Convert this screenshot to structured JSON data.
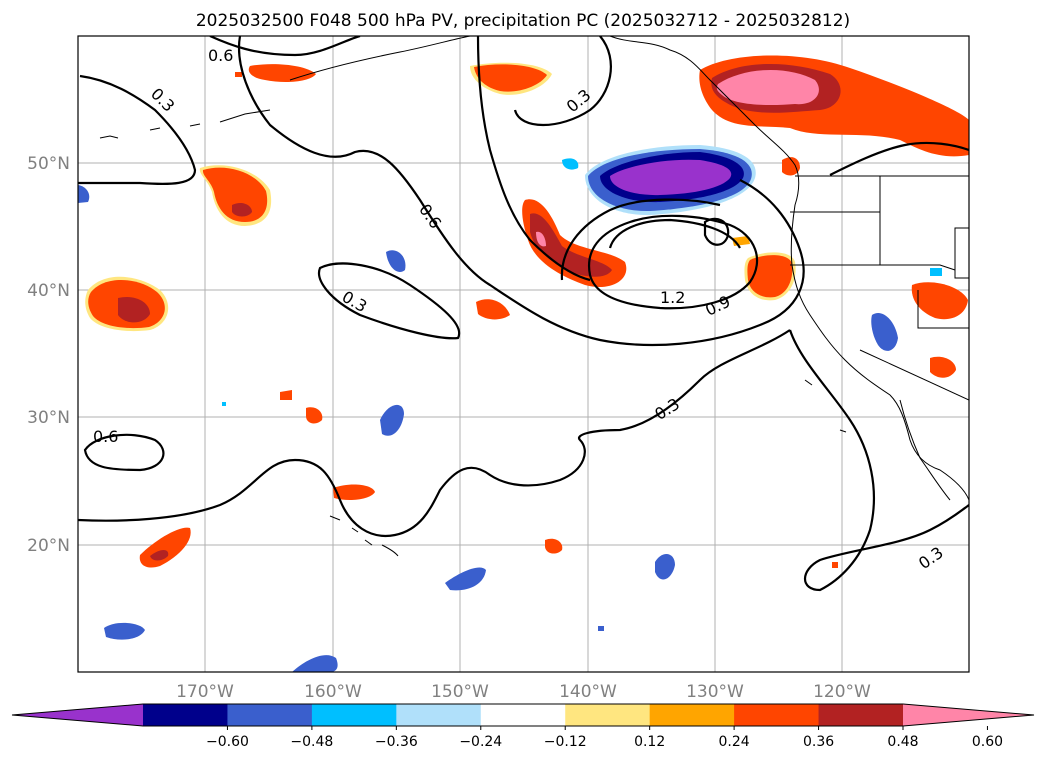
{
  "title": "2025032500 F048 500 hPa PV, precipitation PC (2025032712 - 2025032812)",
  "map": {
    "lat_labels": [
      "50°N",
      "40°N",
      "30°N",
      "20°N"
    ],
    "lon_labels": [
      "170°W",
      "160°W",
      "150°W",
      "140°W",
      "130°W",
      "120°W"
    ],
    "contour_labels": [
      "0.6",
      "0.3",
      "0.6",
      "0.3",
      "0.3",
      "0.6",
      "0.3",
      "1.2",
      "0.9",
      "0.3"
    ]
  },
  "colorbar": {
    "ticks": [
      "−0.60",
      "−0.48",
      "−0.36",
      "−0.24",
      "−0.12",
      "0.12",
      "0.24",
      "0.36",
      "0.48",
      "0.60"
    ],
    "colors": [
      "#9932cc",
      "#00008b",
      "#3a5fcd",
      "#00bfff",
      "#b0e0fa",
      "#ffffff",
      "#ffe680",
      "#ffa500",
      "#ff4500",
      "#b22222",
      "#ff85a8"
    ]
  },
  "colors": {
    "neg_strong": "#9932cc",
    "neg_dark": "#00008b",
    "neg_mid": "#3a5fcd",
    "neg_light": "#00bfff",
    "neg_pale": "#b0e0fa",
    "pos_pale": "#ffe680",
    "pos_mid": "#ffa500",
    "pos_strong": "#ff4500",
    "pos_dark": "#b22222",
    "pos_max": "#ff85a8",
    "grid": "#b0b0b0"
  }
}
